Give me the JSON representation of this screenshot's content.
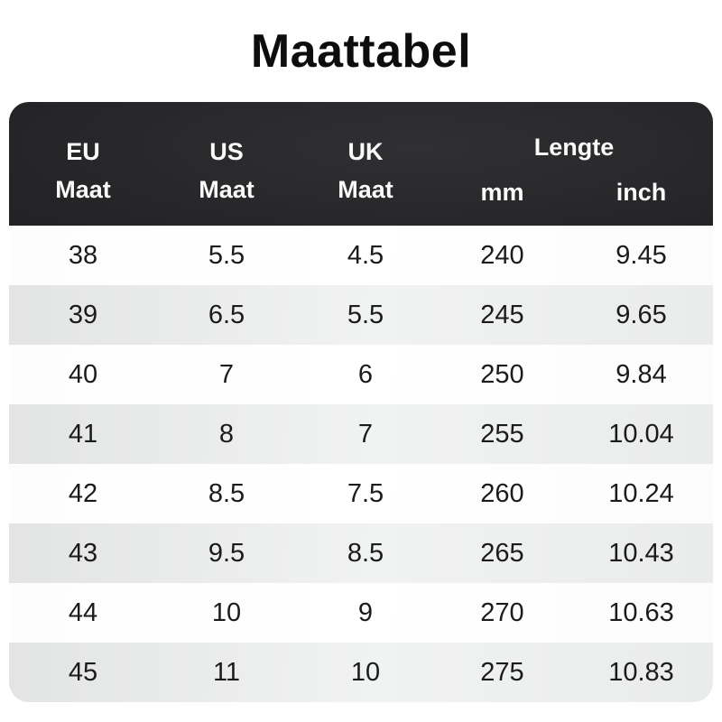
{
  "title": "Maattabel",
  "table": {
    "header": {
      "eu": {
        "line1": "EU",
        "line2": "Maat"
      },
      "us": {
        "line1": "US",
        "line2": "Maat"
      },
      "uk": {
        "line1": "UK",
        "line2": "Maat"
      },
      "length": {
        "label": "Lengte",
        "sub_mm": "mm",
        "sub_inch": "inch"
      }
    },
    "rows": [
      {
        "eu": "38",
        "us": "5.5",
        "uk": "4.5",
        "mm": "240",
        "inch": "9.45"
      },
      {
        "eu": "39",
        "us": "6.5",
        "uk": "5.5",
        "mm": "245",
        "inch": "9.65"
      },
      {
        "eu": "40",
        "us": "7",
        "uk": "6",
        "mm": "250",
        "inch": "9.84"
      },
      {
        "eu": "41",
        "us": "8",
        "uk": "7",
        "mm": "255",
        "inch": "10.04"
      },
      {
        "eu": "42",
        "us": "8.5",
        "uk": "7.5",
        "mm": "260",
        "inch": "10.24"
      },
      {
        "eu": "43",
        "us": "9.5",
        "uk": "8.5",
        "mm": "265",
        "inch": "10.43"
      },
      {
        "eu": "44",
        "us": "10",
        "uk": "9",
        "mm": "270",
        "inch": "10.63"
      },
      {
        "eu": "45",
        "us": "11",
        "uk": "10",
        "mm": "275",
        "inch": "10.83"
      }
    ]
  },
  "colors": {
    "header_bg_dark": "#1b1b1d",
    "header_bg_light": "#303032",
    "header_text": "#fafafa",
    "row_white_bg": "#ffffff",
    "row_alt_bg": "#e9eaea",
    "body_text": "#1b1b1d",
    "title_text": "#0d0d0d",
    "page_bg": "#ffffff"
  },
  "chart_data": {
    "type": "table",
    "title": "Maattabel",
    "columns": [
      "EU Maat",
      "US Maat",
      "UK Maat",
      "Lengte mm",
      "Lengte inch"
    ],
    "column_groups": [
      {
        "label": "Lengte",
        "spans": [
          "mm",
          "inch"
        ]
      }
    ],
    "rows": [
      [
        "38",
        "5.5",
        "4.5",
        "240",
        "9.45"
      ],
      [
        "39",
        "6.5",
        "5.5",
        "245",
        "9.65"
      ],
      [
        "40",
        "7",
        "6",
        "250",
        "9.84"
      ],
      [
        "41",
        "8",
        "7",
        "255",
        "10.04"
      ],
      [
        "42",
        "8.5",
        "7.5",
        "260",
        "10.24"
      ],
      [
        "43",
        "9.5",
        "8.5",
        "265",
        "10.43"
      ],
      [
        "44",
        "10",
        "9",
        "270",
        "10.63"
      ],
      [
        "45",
        "11",
        "10",
        "275",
        "10.83"
      ]
    ]
  }
}
